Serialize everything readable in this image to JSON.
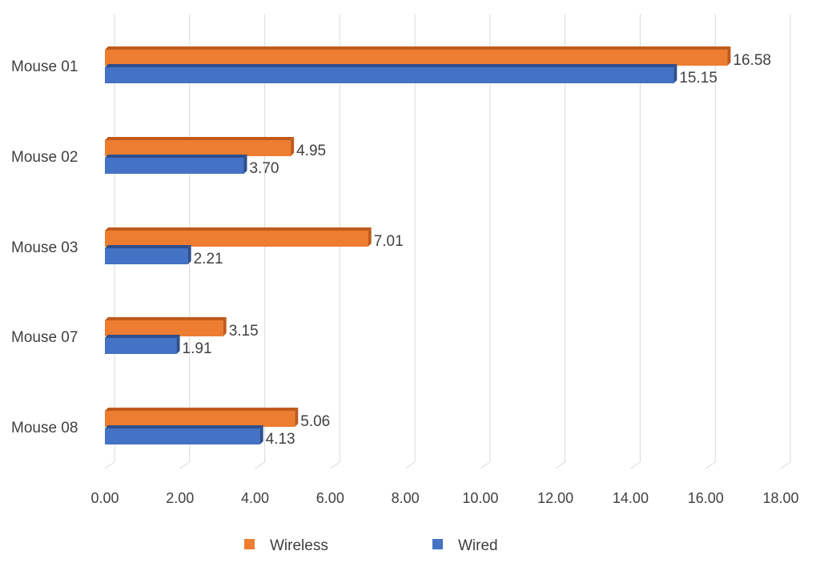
{
  "chart_data": {
    "type": "bar",
    "orientation": "horizontal",
    "title": "",
    "xlabel": "",
    "ylabel": "",
    "categories": [
      "Mouse 01",
      "Mouse 02",
      "Mouse 03",
      "Mouse 07",
      "Mouse 08"
    ],
    "series": [
      {
        "name": "Wireless",
        "color": "#ED7D31",
        "shade": "#C05A1C",
        "values": [
          16.58,
          4.95,
          7.01,
          3.15,
          5.06
        ],
        "labels": [
          "16.58",
          "4.95",
          "7.01",
          "3.15",
          "5.06"
        ]
      },
      {
        "name": "Wired",
        "color": "#4472C4",
        "shade": "#2E4F8C",
        "values": [
          15.15,
          3.7,
          2.21,
          1.91,
          4.13
        ],
        "labels": [
          "15.15",
          "3.70",
          "2.21",
          "1.91",
          "4.13"
        ]
      }
    ],
    "xlim": [
      0,
      18
    ],
    "xticks": [
      0,
      2,
      4,
      6,
      8,
      10,
      12,
      14,
      16,
      18
    ],
    "xtick_labels": [
      "0.00",
      "2.00",
      "4.00",
      "6.00",
      "8.00",
      "10.00",
      "12.00",
      "14.00",
      "16.00",
      "18.00"
    ],
    "grid": true,
    "legend_position": "bottom"
  }
}
